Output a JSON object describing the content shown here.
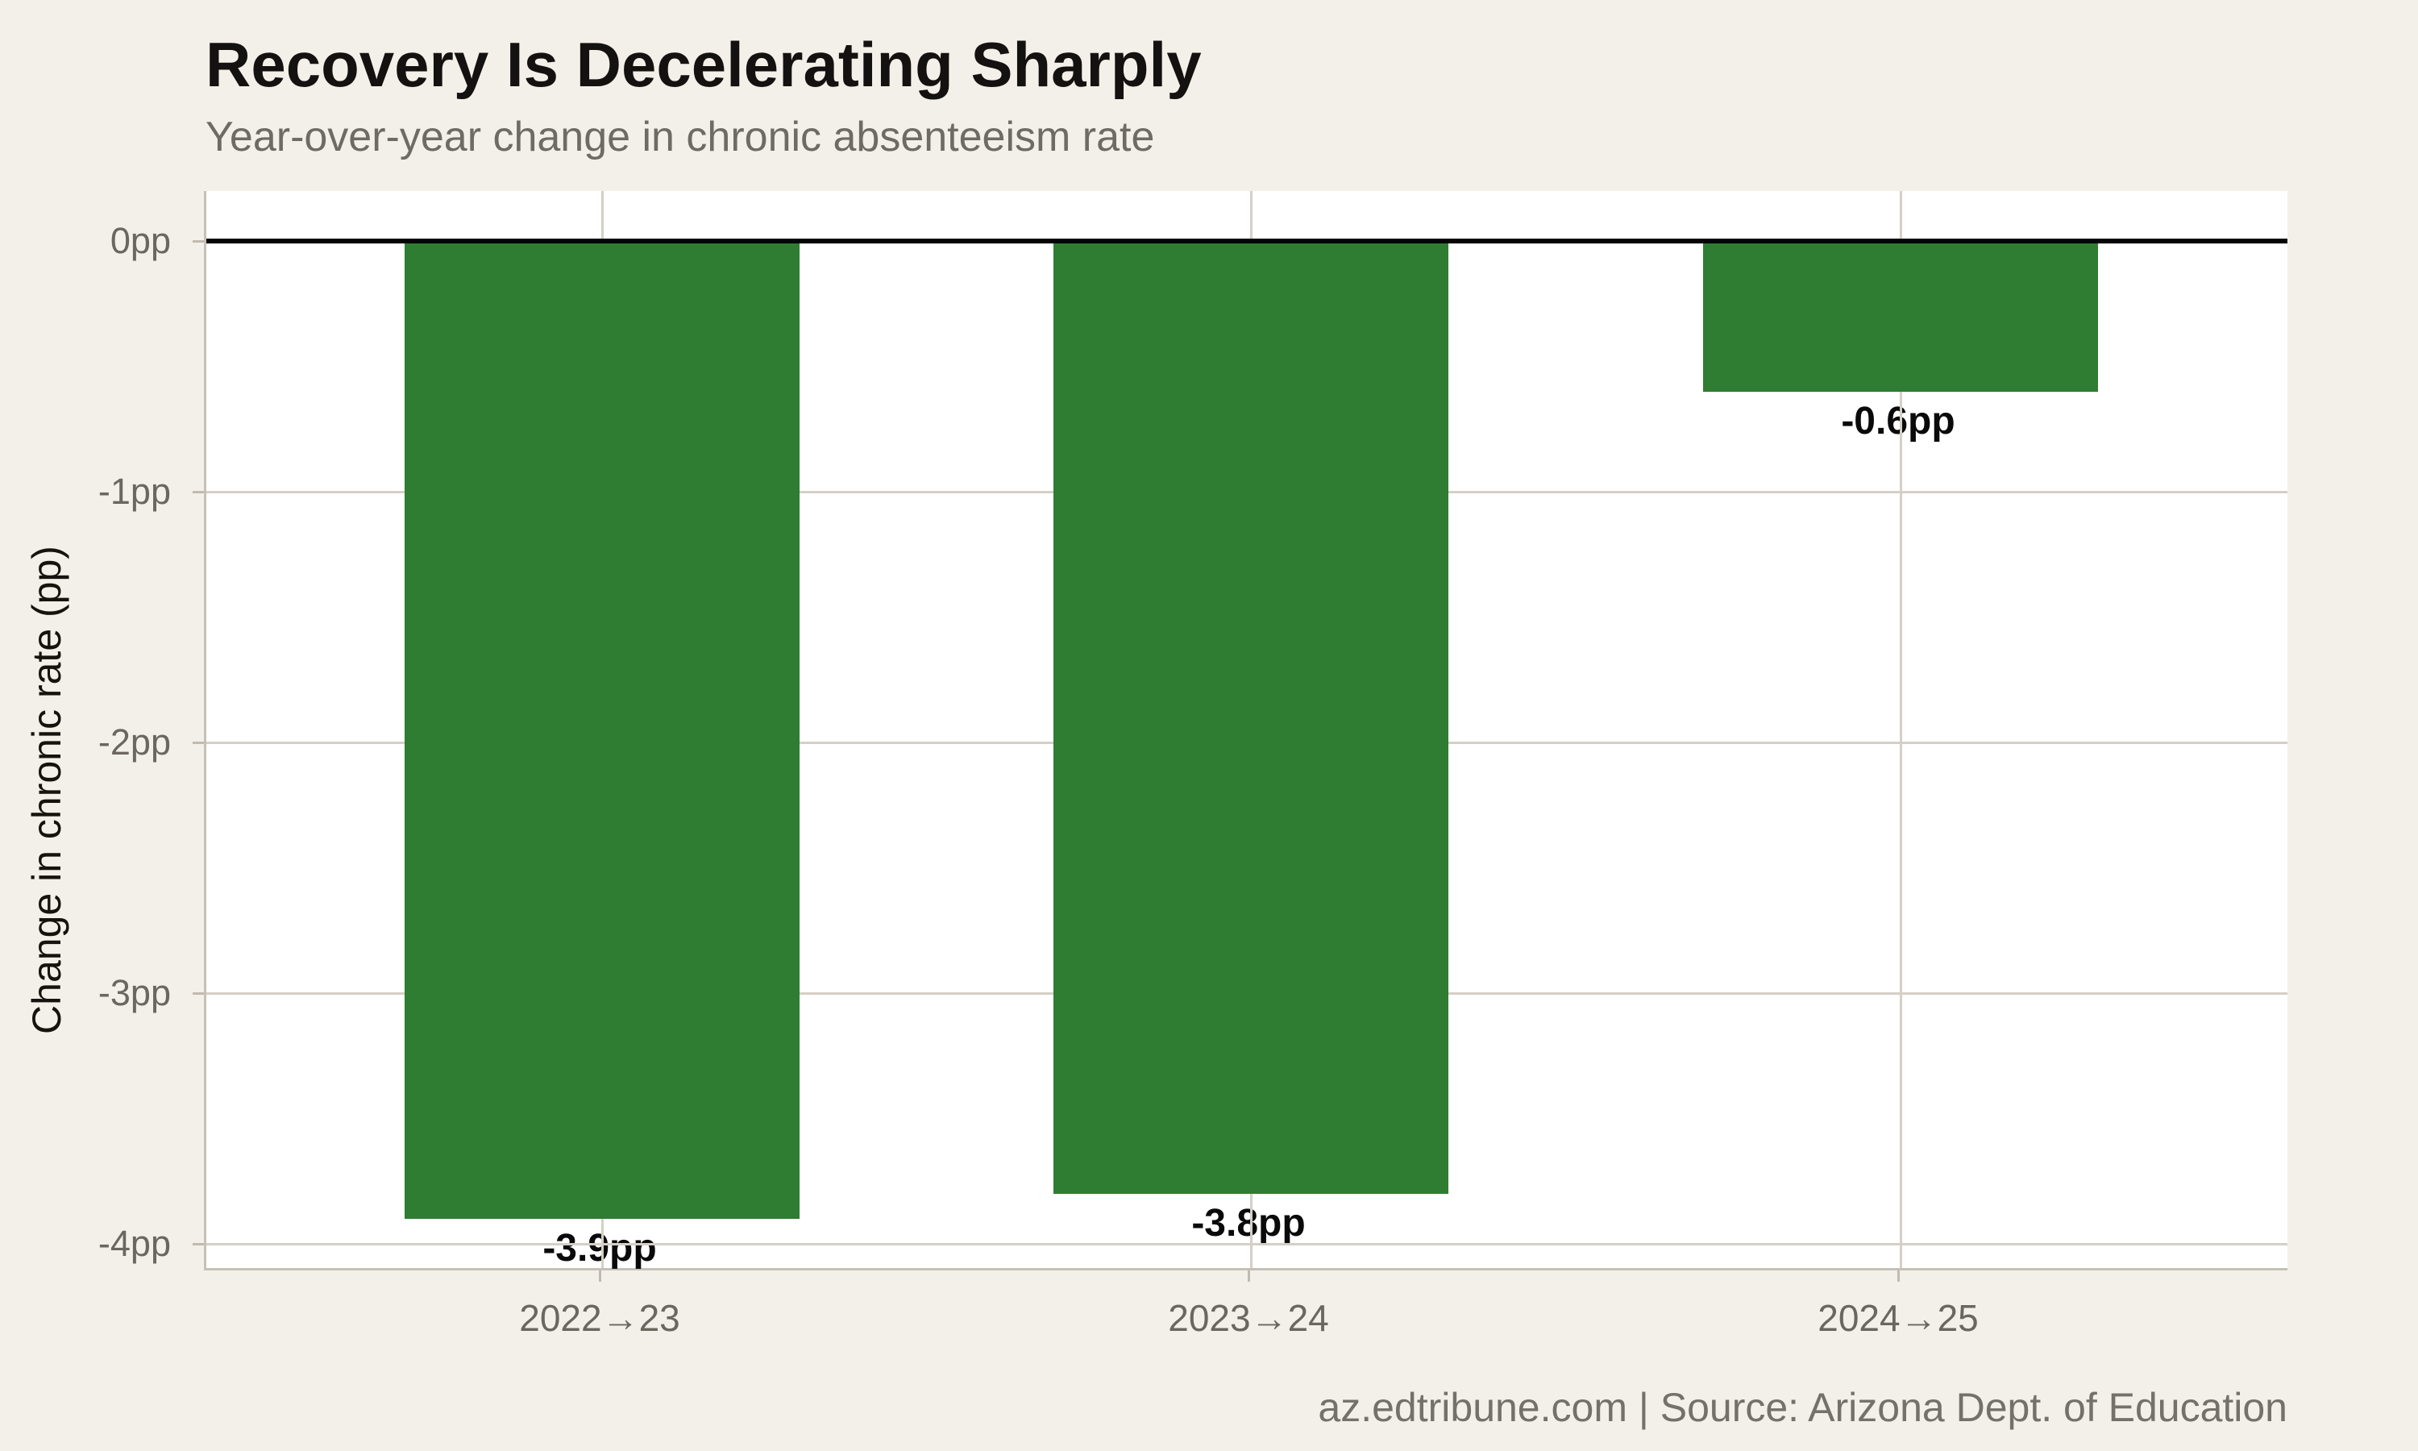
{
  "chart_data": {
    "type": "bar",
    "title": "Recovery Is Decelerating Sharply",
    "subtitle": "Year-over-year change in chronic absenteeism rate",
    "ylabel": "Change in chronic rate (pp)",
    "xlabel": "",
    "categories": [
      "2022→23",
      "2023→24",
      "2024→25"
    ],
    "values": [
      -3.9,
      -3.8,
      -0.6
    ],
    "bar_labels": [
      "-3.9pp",
      "-3.8pp",
      "-0.6pp"
    ],
    "yticks": [
      {
        "value": 0,
        "label": "0pp"
      },
      {
        "value": -1,
        "label": "-1pp"
      },
      {
        "value": -2,
        "label": "-2pp"
      },
      {
        "value": -3,
        "label": "-3pp"
      },
      {
        "value": -4,
        "label": "-4pp"
      }
    ],
    "ylim": [
      0.2,
      -4.1
    ],
    "grid": true,
    "legend": false,
    "bar_color": "#2e7d32",
    "zero_line_color": "#050505",
    "source": "az.edtribune.com | Source: Arizona Dept. of Education"
  },
  "colors": {
    "background": "#f3f0e9",
    "plot_background": "#ffffff",
    "bar": "#2e7d32",
    "zero_line": "#050505",
    "gridline": "#d5cfc6",
    "spine": "#c6c0b7",
    "tick_mark": "#c0bab1",
    "tick_label": "#6b675f",
    "title": "#141210",
    "subtitle": "#6e6a64",
    "value_label": "#0a0a0a",
    "footer": "#74706a"
  }
}
